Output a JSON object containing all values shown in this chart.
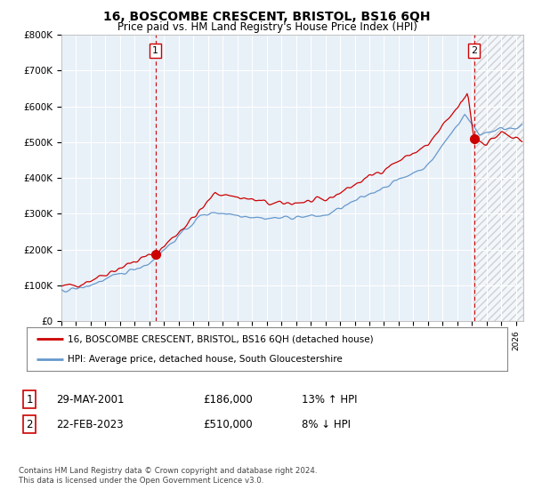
{
  "title": "16, BOSCOMBE CRESCENT, BRISTOL, BS16 6QH",
  "subtitle": "Price paid vs. HM Land Registry's House Price Index (HPI)",
  "ylabel_ticks": [
    "£0",
    "£100K",
    "£200K",
    "£300K",
    "£400K",
    "£500K",
    "£600K",
    "£700K",
    "£800K"
  ],
  "ytick_values": [
    0,
    100000,
    200000,
    300000,
    400000,
    500000,
    600000,
    700000,
    800000
  ],
  "ylim": [
    0,
    800000
  ],
  "xlim_start": 1995.0,
  "xlim_end": 2026.5,
  "red_color": "#cc0000",
  "blue_color": "#6699cc",
  "blue_fill": "#ddeeff",
  "marker1_x": 2001.41,
  "marker1_y": 186000,
  "marker2_x": 2023.14,
  "marker2_y": 510000,
  "legend_line1": "16, BOSCOMBE CRESCENT, BRISTOL, BS16 6QH (detached house)",
  "legend_line2": "HPI: Average price, detached house, South Gloucestershire",
  "table_row1": [
    "1",
    "29-MAY-2001",
    "£186,000",
    "13% ↑ HPI"
  ],
  "table_row2": [
    "2",
    "22-FEB-2023",
    "£510,000",
    "8% ↓ HPI"
  ],
  "footer": "Contains HM Land Registry data © Crown copyright and database right 2024.\nThis data is licensed under the Open Government Licence v3.0.",
  "background_color": "#ffffff",
  "grid_color": "#cccccc",
  "hatch_start": 2023.14
}
